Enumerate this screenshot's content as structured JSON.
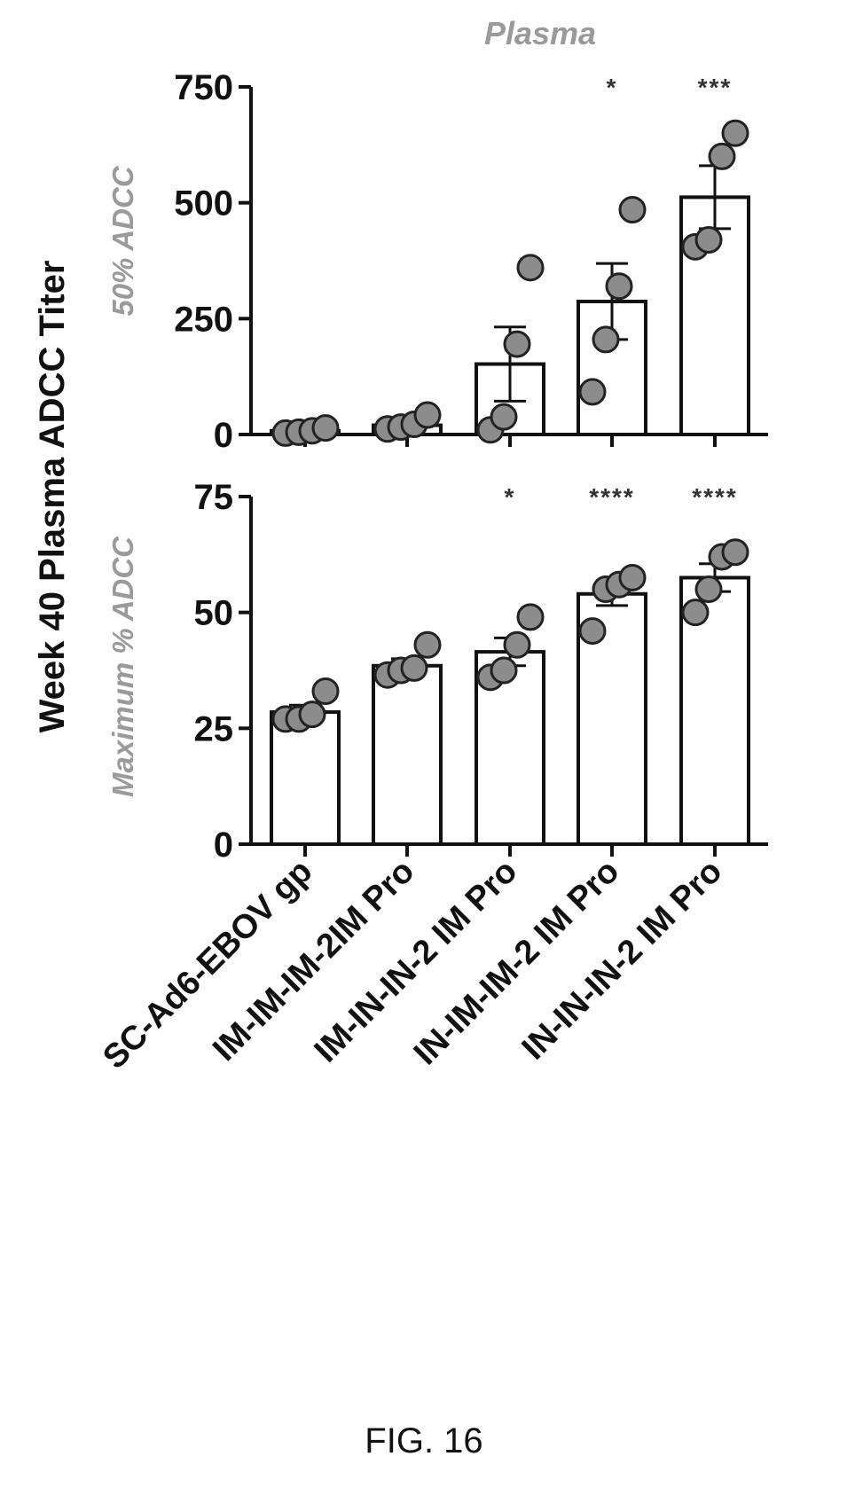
{
  "title": "Plasma",
  "ylabel": "Week 40 Plasma ADCC Titer",
  "caption": "FIG. 16",
  "colors": {
    "bar_fill": "#ffffff",
    "bar_stroke": "#111111",
    "point_fill": "#8c8c8c",
    "point_stroke": "#222222",
    "panel_label": "#9a9a9a"
  },
  "chart_data": [
    {
      "type": "bar",
      "panel_label": "50% ADCC",
      "categories": [
        "SC-Ad6-EBOV gp",
        "IM-IM-IM-2IM Pro",
        "IM-IN-IN-2 IM Pro",
        "IN-IM-IM-2 IM Pro",
        "IN-IN-IN-2 IM Pro"
      ],
      "values": [
        8,
        20,
        152,
        287,
        512
      ],
      "error": [
        2,
        7,
        80,
        82,
        68
      ],
      "points": [
        [
          3,
          5,
          8,
          14
        ],
        [
          12,
          16,
          22,
          42
        ],
        [
          10,
          38,
          195,
          360
        ],
        [
          92,
          205,
          320,
          485
        ],
        [
          405,
          420,
          600,
          650
        ]
      ],
      "significance": [
        "",
        "",
        "",
        "*",
        "***"
      ],
      "yticks": [
        "0",
        "250",
        "500",
        "750"
      ],
      "ylim": [
        0,
        750
      ],
      "grid": false
    },
    {
      "type": "bar",
      "panel_label": "Maximum % ADCC",
      "categories": [
        "SC-Ad6-EBOV gp",
        "IM-IM-IM-2IM Pro",
        "IM-IN-IN-2 IM Pro",
        "IN-IM-IM-2 IM Pro",
        "IN-IN-IN-2 IM Pro"
      ],
      "values": [
        28.5,
        38.5,
        41.5,
        54,
        57.5
      ],
      "error": [
        1.5,
        1.5,
        3,
        2.5,
        3
      ],
      "points": [
        [
          27,
          27,
          28,
          33
        ],
        [
          36.5,
          37.5,
          38,
          43
        ],
        [
          36,
          37.5,
          43,
          49
        ],
        [
          46,
          55,
          56,
          57.5
        ],
        [
          50,
          55,
          62,
          63
        ]
      ],
      "significance": [
        "",
        "",
        "*",
        "****",
        "****"
      ],
      "yticks": [
        "0",
        "25",
        "50",
        "75"
      ],
      "ylim": [
        0,
        75
      ],
      "grid": false
    }
  ]
}
